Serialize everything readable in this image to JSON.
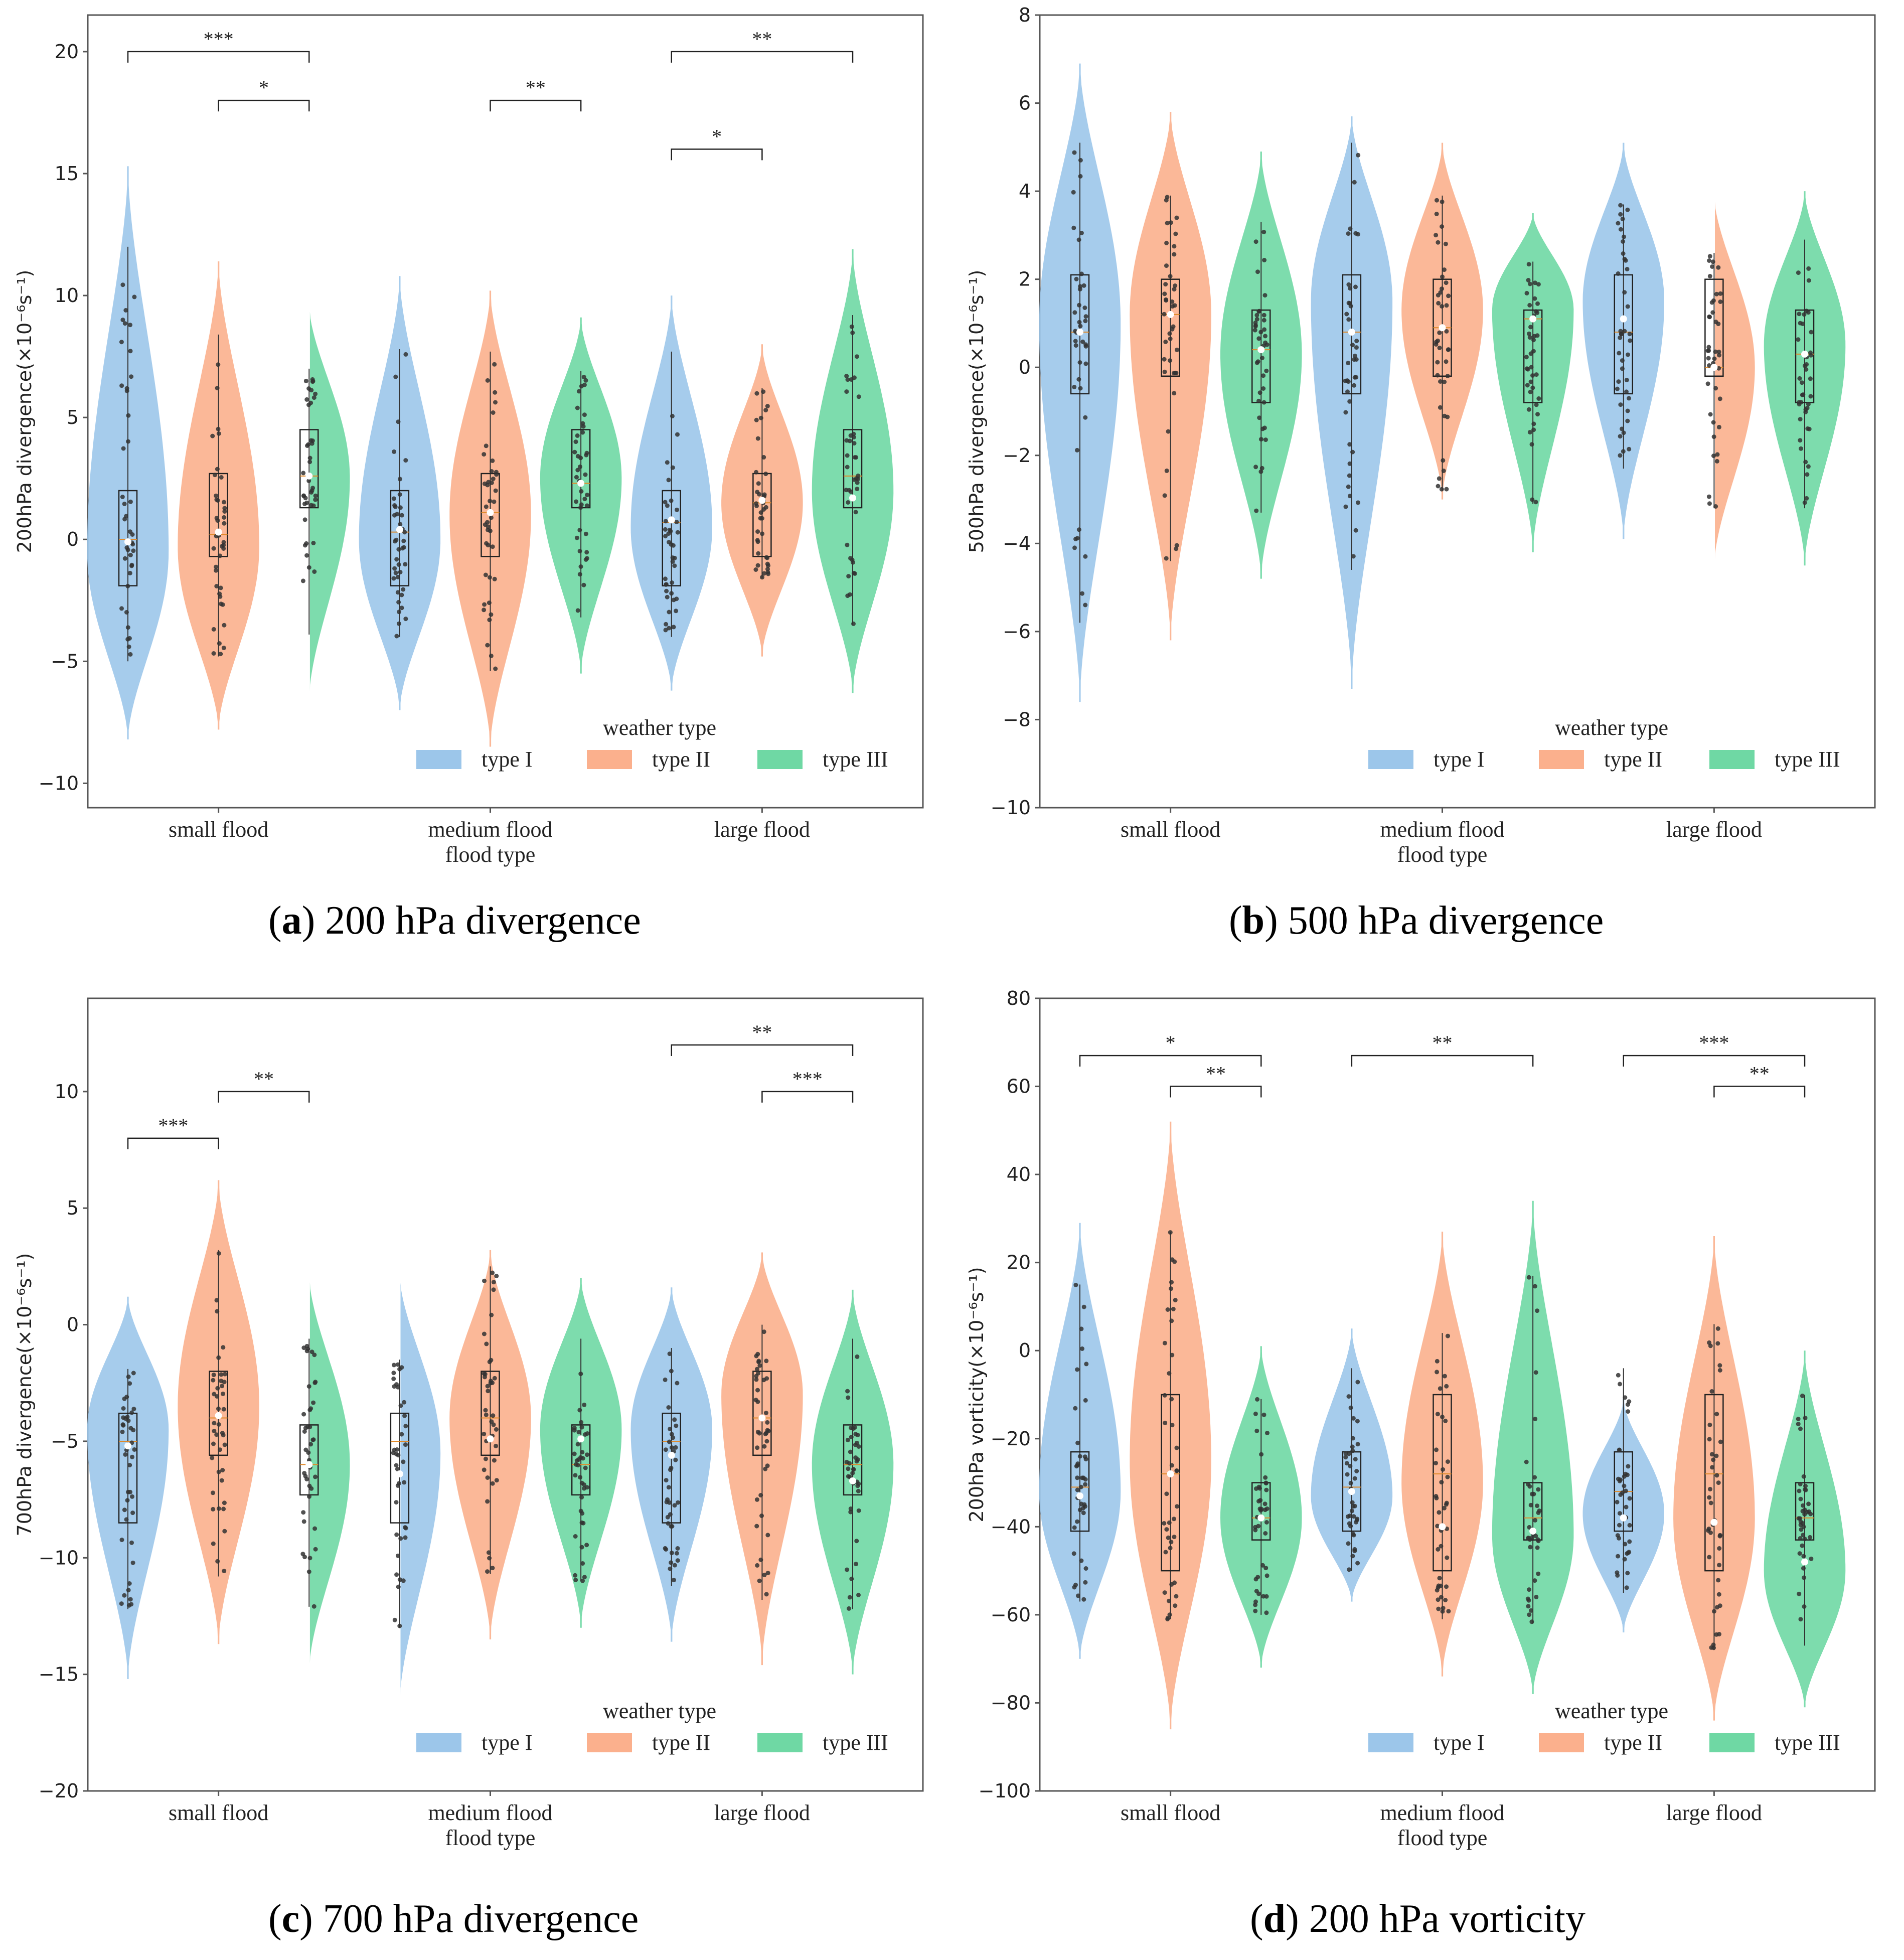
{
  "colors": {
    "type_I": "#9cc6ea",
    "type_II": "#fbb08d",
    "type_III": "#6fd8a4",
    "median": "#e08a2a",
    "axis": "#555555",
    "point": "#333333",
    "mean_dot": "#ffffff"
  },
  "legend": {
    "title": "weather type",
    "labels": [
      "type I",
      "type II",
      "type III"
    ]
  },
  "chart_data": [
    {
      "id": "a",
      "type": "violin",
      "caption": {
        "letter": "a",
        "text": " 200 hPa divergence",
        "open": "(",
        "close": ")"
      },
      "ylabel": "200hPa divergence(×10⁻⁶s⁻¹)",
      "xlabel": "flood type",
      "categories": [
        "small flood",
        "medium flood",
        "large flood"
      ],
      "ylim": [
        -11,
        21.5
      ],
      "yticks": [
        -10,
        -5,
        0,
        5,
        10,
        15,
        20
      ],
      "ytick_labels": [
        "−10",
        "−5",
        "0",
        "5",
        "10",
        "15",
        "20"
      ],
      "groups": [
        {
          "cat": 0,
          "wt": 0,
          "vmin": -8.2,
          "vmax": 15.3,
          "peak": -0.5,
          "q1": -1.9,
          "q3": 2.0,
          "median": 0.0,
          "mean": -0.1,
          "wlo": -5,
          "whi": 12
        },
        {
          "cat": 0,
          "wt": 1,
          "vmin": -7.8,
          "vmax": 11.4,
          "peak": -0.3,
          "q1": -0.7,
          "q3": 2.7,
          "median": 0.2,
          "mean": 0.3,
          "wlo": -4.8,
          "whi": 8.4
        },
        {
          "cat": 0,
          "wt": 2,
          "vmin": -6.5,
          "vmax": 9.6,
          "peak": 2.5,
          "q1": 1.3,
          "q3": 4.5,
          "median": 2.6,
          "mean": 2.6,
          "wlo": -3.9,
          "whi": 7.0
        },
        {
          "cat": 1,
          "wt": 0,
          "vmin": -7.0,
          "vmax": 10.8,
          "peak": 0.0,
          "q1": -1.9,
          "q3": 2.0,
          "median": 0.3,
          "mean": 0.4,
          "wlo": -4.0,
          "whi": 7.8
        },
        {
          "cat": 1,
          "wt": 1,
          "vmin": -8.5,
          "vmax": 10.2,
          "peak": 1.0,
          "q1": -0.7,
          "q3": 2.7,
          "median": 1.1,
          "mean": 1.1,
          "wlo": -5.4,
          "whi": 7.7
        },
        {
          "cat": 1,
          "wt": 2,
          "vmin": -5.5,
          "vmax": 9.1,
          "peak": 2.5,
          "q1": 1.3,
          "q3": 4.5,
          "median": 2.3,
          "mean": 2.3,
          "wlo": -3.2,
          "whi": 6.9
        },
        {
          "cat": 2,
          "wt": 0,
          "vmin": -6.2,
          "vmax": 10.0,
          "peak": 0.5,
          "q1": -1.9,
          "q3": 2.0,
          "median": 0.7,
          "mean": 0.8,
          "wlo": -4.0,
          "whi": 7.7
        },
        {
          "cat": 2,
          "wt": 1,
          "vmin": -4.8,
          "vmax": 8.0,
          "peak": 1.5,
          "q1": -0.7,
          "q3": 2.7,
          "median": 1.5,
          "mean": 1.6,
          "wlo": -1.6,
          "whi": 6.2
        },
        {
          "cat": 2,
          "wt": 2,
          "vmin": -6.3,
          "vmax": 11.9,
          "peak": 2.0,
          "q1": 1.3,
          "q3": 4.5,
          "median": 2.6,
          "mean": 1.7,
          "wlo": -3.5,
          "whi": 9.2
        }
      ],
      "brackets": [
        {
          "from": [
            0,
            0
          ],
          "to": [
            0,
            2
          ],
          "y": 20,
          "label": "***"
        },
        {
          "from": [
            0,
            1
          ],
          "to": [
            0,
            2
          ],
          "y": 18,
          "label": "*"
        },
        {
          "from": [
            1,
            1
          ],
          "to": [
            1,
            2
          ],
          "y": 18,
          "label": "**"
        },
        {
          "from": [
            2,
            0
          ],
          "to": [
            2,
            2
          ],
          "y": 20,
          "label": "**"
        },
        {
          "from": [
            2,
            0
          ],
          "to": [
            2,
            1
          ],
          "y": 16,
          "label": "*"
        }
      ]
    },
    {
      "id": "b",
      "type": "violin",
      "caption": {
        "letter": "b",
        "text": " 500 hPa divergence",
        "open": "(",
        "close": ")"
      },
      "ylabel": "500hPa divergence(×10⁻⁶s⁻¹)",
      "xlabel": "flood type",
      "categories": [
        "small flood",
        "medium flood",
        "large flood"
      ],
      "ylim": [
        -10,
        8
      ],
      "yticks": [
        -10,
        -8,
        -6,
        -4,
        -2,
        0,
        2,
        4,
        6,
        8
      ],
      "ytick_labels": [
        "−10",
        "−8",
        "−6",
        "−4",
        "−2",
        "0",
        "2",
        "4",
        "6",
        "8"
      ],
      "groups": [
        {
          "cat": 0,
          "wt": 0,
          "vmin": -7.6,
          "vmax": 6.9,
          "peak": 1.0,
          "q1": -0.6,
          "q3": 2.1,
          "median": 0.8,
          "mean": 0.8,
          "wlo": -5.8,
          "whi": 5.1
        },
        {
          "cat": 0,
          "wt": 1,
          "vmin": -6.2,
          "vmax": 5.8,
          "peak": 1.2,
          "q1": -0.2,
          "q3": 2.0,
          "median": 1.2,
          "mean": 1.2,
          "wlo": -4.4,
          "whi": 3.9
        },
        {
          "cat": 0,
          "wt": 2,
          "vmin": -4.8,
          "vmax": 4.9,
          "peak": 0.3,
          "q1": -0.8,
          "q3": 1.3,
          "median": 0.4,
          "mean": 0.4,
          "wlo": -3.3,
          "whi": 3.3
        },
        {
          "cat": 1,
          "wt": 0,
          "vmin": -7.3,
          "vmax": 5.7,
          "peak": 1.5,
          "q1": -0.6,
          "q3": 2.1,
          "median": 0.8,
          "mean": 0.8,
          "wlo": -4.6,
          "whi": 5.1
        },
        {
          "cat": 1,
          "wt": 1,
          "vmin": -3.0,
          "vmax": 5.1,
          "peak": 1.3,
          "q1": -0.2,
          "q3": 2.0,
          "median": 0.9,
          "mean": 0.9,
          "wlo": -2.8,
          "whi": 3.9
        },
        {
          "cat": 1,
          "wt": 2,
          "vmin": -4.2,
          "vmax": 3.5,
          "peak": 1.3,
          "q1": -0.8,
          "q3": 1.3,
          "median": 1.1,
          "mean": 1.1,
          "wlo": -3.1,
          "whi": 2.4
        },
        {
          "cat": 2,
          "wt": 0,
          "vmin": -3.9,
          "vmax": 5.1,
          "peak": 1.5,
          "q1": -0.6,
          "q3": 2.1,
          "median": 0.8,
          "mean": 1.1,
          "wlo": -2.3,
          "whi": 3.7
        },
        {
          "cat": 2,
          "wt": 1,
          "vmin": -4.5,
          "vmax": 3.9,
          "peak": 0.0,
          "q1": -0.2,
          "q3": 2.0,
          "median": 0.0,
          "mean": 0.0,
          "wlo": -3.2,
          "whi": 2.6
        },
        {
          "cat": 2,
          "wt": 2,
          "vmin": -4.5,
          "vmax": 4.0,
          "peak": 0.5,
          "q1": -0.8,
          "q3": 1.3,
          "median": 0.3,
          "mean": 0.3,
          "wlo": -3.2,
          "whi": 2.9
        }
      ],
      "brackets": []
    },
    {
      "id": "c",
      "type": "violin",
      "caption": {
        "letter": "c",
        "text": " 700 hPa divergence",
        "open": "(",
        "close": ")"
      },
      "ylabel": "700hPa divergence(×10⁻⁶s⁻¹)",
      "xlabel": "flood type",
      "categories": [
        "small flood",
        "medium flood",
        "large flood"
      ],
      "ylim": [
        -20,
        14
      ],
      "yticks": [
        -20,
        -15,
        -10,
        -5,
        0,
        5,
        10
      ],
      "ytick_labels": [
        "−20",
        "−15",
        "−10",
        "−5",
        "0",
        "5",
        "10"
      ],
      "groups": [
        {
          "cat": 0,
          "wt": 0,
          "vmin": -15.2,
          "vmax": 1.2,
          "peak": -4.5,
          "q1": -8.5,
          "q3": -3.8,
          "median": -5.0,
          "mean": -5.2,
          "wlo": -12.2,
          "whi": -1.9
        },
        {
          "cat": 0,
          "wt": 1,
          "vmin": -13.7,
          "vmax": 6.2,
          "peak": -3.5,
          "q1": -5.6,
          "q3": -2.0,
          "median": -4.0,
          "mean": -3.9,
          "wlo": -10.8,
          "whi": 3.2
        },
        {
          "cat": 0,
          "wt": 2,
          "vmin": -14.8,
          "vmax": 2.1,
          "peak": -6.0,
          "q1": -7.3,
          "q3": -4.3,
          "median": -6.0,
          "mean": -6.0,
          "wlo": -12.1,
          "whi": -0.6
        },
        {
          "cat": 1,
          "wt": 0,
          "vmin": -16.2,
          "vmax": 2.1,
          "peak": -5.5,
          "q1": -8.5,
          "q3": -3.8,
          "median": -5.0,
          "mean": -6.4,
          "wlo": -13.0,
          "whi": -1.5
        },
        {
          "cat": 1,
          "wt": 1,
          "vmin": -13.5,
          "vmax": 3.2,
          "peak": -4.0,
          "q1": -5.6,
          "q3": -2.0,
          "median": -4.0,
          "mean": -4.9,
          "wlo": -10.7,
          "whi": 2.5
        },
        {
          "cat": 1,
          "wt": 2,
          "vmin": -13.0,
          "vmax": 2.0,
          "peak": -4.5,
          "q1": -7.3,
          "q3": -4.3,
          "median": -6.0,
          "mean": -4.9,
          "wlo": -11.0,
          "whi": -0.6
        },
        {
          "cat": 2,
          "wt": 0,
          "vmin": -13.6,
          "vmax": 1.6,
          "peak": -4.5,
          "q1": -8.5,
          "q3": -3.8,
          "median": -5.0,
          "mean": -5.6,
          "wlo": -11.2,
          "whi": -1.0
        },
        {
          "cat": 2,
          "wt": 1,
          "vmin": -14.6,
          "vmax": 3.1,
          "peak": -3.0,
          "q1": -5.6,
          "q3": -2.0,
          "median": -4.0,
          "mean": -4.0,
          "wlo": -11.8,
          "whi": 0.0
        },
        {
          "cat": 2,
          "wt": 2,
          "vmin": -15.0,
          "vmax": 1.5,
          "peak": -6.0,
          "q1": -7.3,
          "q3": -4.3,
          "median": -6.0,
          "mean": -6.7,
          "wlo": -12.2,
          "whi": -0.6
        }
      ],
      "brackets": [
        {
          "from": [
            0,
            0
          ],
          "to": [
            0,
            1
          ],
          "y": 8,
          "label": "***"
        },
        {
          "from": [
            0,
            1
          ],
          "to": [
            0,
            2
          ],
          "y": 10,
          "label": "**"
        },
        {
          "from": [
            2,
            0
          ],
          "to": [
            2,
            2
          ],
          "y": 12,
          "label": "**"
        },
        {
          "from": [
            2,
            1
          ],
          "to": [
            2,
            2
          ],
          "y": 10,
          "label": "***"
        }
      ]
    },
    {
      "id": "d",
      "type": "violin",
      "caption": {
        "letter": "d",
        "text": " 200 hPa vorticity",
        "open": "(",
        "close": ")"
      },
      "ylabel": "200hPa vorticity(×10⁻⁶s⁻¹)",
      "xlabel": "flood type",
      "categories": [
        "small flood",
        "medium flood",
        "large flood"
      ],
      "ylim": [
        -100,
        80
      ],
      "yticks": [
        -100,
        -80,
        -60,
        -40,
        -20,
        0,
        20,
        40,
        60,
        80
      ],
      "ytick_labels": [
        "−100",
        "−80",
        "−60",
        "−40",
        "−20",
        "0",
        "20",
        "40",
        "60",
        "80"
      ],
      "groups": [
        {
          "cat": 0,
          "wt": 0,
          "vmin": -70,
          "vmax": 29,
          "peak": -32,
          "q1": -41,
          "q3": -23,
          "median": -31,
          "mean": -33,
          "wlo": -57,
          "whi": 15
        },
        {
          "cat": 0,
          "wt": 1,
          "vmin": -86,
          "vmax": 52,
          "peak": -25,
          "q1": -50,
          "q3": -10,
          "median": -28,
          "mean": -28,
          "wlo": -61,
          "whi": 27
        },
        {
          "cat": 0,
          "wt": 2,
          "vmin": -72,
          "vmax": 1,
          "peak": -38,
          "q1": -43,
          "q3": -30,
          "median": -38,
          "mean": -38,
          "wlo": -60,
          "whi": -11
        },
        {
          "cat": 1,
          "wt": 0,
          "vmin": -57,
          "vmax": 5,
          "peak": -33,
          "q1": -41,
          "q3": -23,
          "median": -31,
          "mean": -32,
          "wlo": -50,
          "whi": -4
        },
        {
          "cat": 1,
          "wt": 1,
          "vmin": -74,
          "vmax": 27,
          "peak": -30,
          "q1": -50,
          "q3": -10,
          "median": -28,
          "mean": -40,
          "wlo": -61,
          "whi": 4
        },
        {
          "cat": 1,
          "wt": 2,
          "vmin": -78,
          "vmax": 34,
          "peak": -42,
          "q1": -43,
          "q3": -30,
          "median": -38,
          "mean": -41,
          "wlo": -62,
          "whi": 17
        },
        {
          "cat": 2,
          "wt": 0,
          "vmin": -64,
          "vmax": -11,
          "peak": -37,
          "q1": -41,
          "q3": -23,
          "median": -32,
          "mean": -38,
          "wlo": -55,
          "whi": -4
        },
        {
          "cat": 2,
          "wt": 1,
          "vmin": -84,
          "vmax": 26,
          "peak": -38,
          "q1": -50,
          "q3": -10,
          "median": -28,
          "mean": -39,
          "wlo": -68,
          "whi": 6
        },
        {
          "cat": 2,
          "wt": 2,
          "vmin": -81,
          "vmax": 0,
          "peak": -50,
          "q1": -43,
          "q3": -30,
          "median": -38,
          "mean": -48,
          "wlo": -67,
          "whi": -10
        }
      ],
      "brackets": [
        {
          "from": [
            0,
            0
          ],
          "to": [
            0,
            2
          ],
          "y": 67,
          "label": "*"
        },
        {
          "from": [
            0,
            1
          ],
          "to": [
            0,
            2
          ],
          "y": 60,
          "label": "**"
        },
        {
          "from": [
            1,
            0
          ],
          "to": [
            1,
            2
          ],
          "y": 67,
          "label": "**"
        },
        {
          "from": [
            2,
            0
          ],
          "to": [
            2,
            2
          ],
          "y": 67,
          "label": "***"
        },
        {
          "from": [
            2,
            1
          ],
          "to": [
            2,
            2
          ],
          "y": 60,
          "label": "**"
        }
      ]
    }
  ]
}
